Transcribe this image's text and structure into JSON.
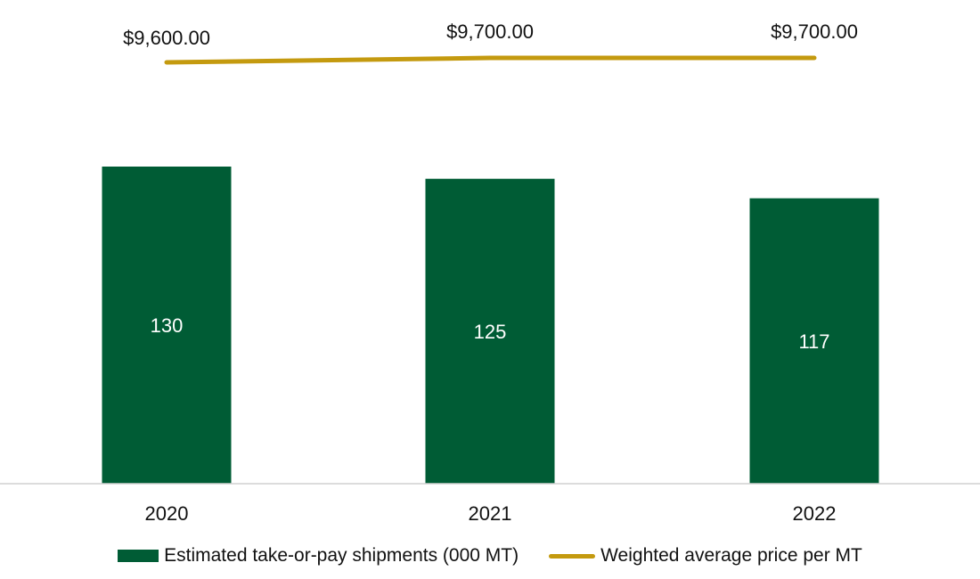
{
  "chart_data": {
    "type": "bar",
    "categories": [
      "2020",
      "2021",
      "2022"
    ],
    "series": [
      {
        "name": "Estimated take-or-pay shipments (000 MT)",
        "kind": "bar",
        "values": [
          130,
          125,
          117
        ],
        "labels": [
          "130",
          "125",
          "117"
        ],
        "color": "#005c35"
      },
      {
        "name": "Weighted average price per MT",
        "kind": "line",
        "values": [
          9600,
          9700,
          9700
        ],
        "labels": [
          "$9,600.00",
          "$9,700.00",
          "$9,700.00"
        ],
        "color": "#c49a0f"
      }
    ],
    "ylim": [
      0,
      130
    ],
    "grid": false,
    "legend_position": "bottom"
  },
  "colors": {
    "axis_line": "#d0d0d0",
    "background": "#ffffff"
  }
}
